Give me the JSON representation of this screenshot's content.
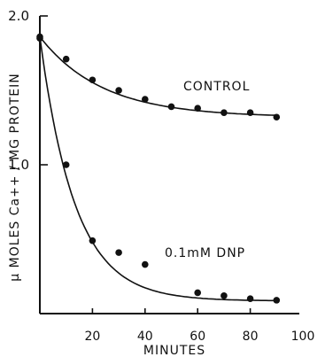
{
  "chart_data": {
    "type": "scatter",
    "title": "",
    "xlabel": "MINUTES",
    "ylabel": "μ MOLES Ca++ / MG PROTEIN",
    "xlim": [
      0,
      100
    ],
    "ylim": [
      0,
      2.0
    ],
    "x_ticks": [
      20,
      40,
      60,
      80,
      100
    ],
    "x_tick_labels": [
      "20",
      "40",
      "60",
      "80",
      "100"
    ],
    "y_ticks": [
      1.0,
      2.0
    ],
    "y_tick_labels": [
      "1.0",
      "2.0"
    ],
    "grid": false,
    "series": [
      {
        "name": "CONTROL",
        "x": [
          0,
          10,
          20,
          30,
          40,
          50,
          60,
          70,
          80,
          90
        ],
        "y": [
          1.85,
          1.71,
          1.57,
          1.5,
          1.44,
          1.39,
          1.38,
          1.35,
          1.35,
          1.32
        ]
      },
      {
        "name": "0.1mM DNP",
        "x": [
          0,
          10,
          20,
          30,
          40,
          60,
          70,
          80,
          90
        ],
        "y": [
          1.86,
          1.0,
          0.49,
          0.41,
          0.33,
          0.14,
          0.12,
          0.1,
          0.09
        ]
      }
    ]
  }
}
